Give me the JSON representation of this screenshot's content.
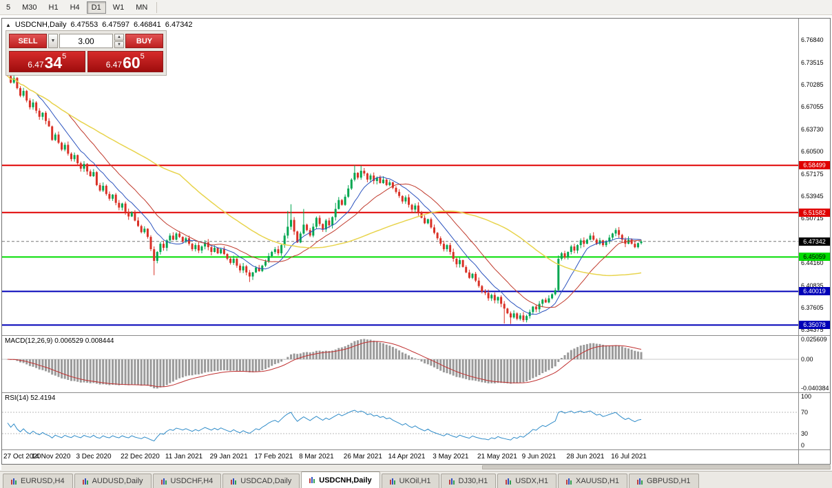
{
  "toolbar": {
    "timeframes": [
      {
        "label": "5",
        "active": false
      },
      {
        "label": "M30",
        "active": false
      },
      {
        "label": "H1",
        "active": false
      },
      {
        "label": "H4",
        "active": false
      },
      {
        "label": "D1",
        "active": true
      },
      {
        "label": "W1",
        "active": false
      },
      {
        "label": "MN",
        "active": false
      }
    ]
  },
  "chart_header": {
    "symbol_period": "USDCNH,Daily",
    "open": "6.47553",
    "high": "6.47597",
    "low": "6.46841",
    "close": "6.47342"
  },
  "one_click": {
    "sell_label": "SELL",
    "buy_label": "BUY",
    "volume": "3.00",
    "sell_big": "6.47",
    "sell_pips": "34",
    "sell_sub": "5",
    "buy_big": "6.47",
    "buy_pips": "60",
    "buy_sub": "5"
  },
  "macd_panel": {
    "label": "MACD(12,26,9)",
    "values": "0.006529 0.008444"
  },
  "rsi_panel": {
    "label": "RSI(14)",
    "value": "52.4194"
  },
  "colors": {
    "bull": "#00a650",
    "bear": "#d93025",
    "ma_fast": "#2a52be",
    "ma_mid": "#c0392b",
    "ma_slow": "#e8d44d",
    "level_red": "#e00000",
    "level_green": "#00dd00",
    "level_blue": "#0000b8",
    "current_badge": "#000000",
    "macd_hist": "#9a9a9a",
    "macd_signal": "#c03030",
    "rsi_line": "#2e8bc8"
  },
  "tabs": [
    {
      "label": "EURUSD,H4",
      "active": false
    },
    {
      "label": "AUDUSD,Daily",
      "active": false
    },
    {
      "label": "USDCHF,H4",
      "active": false
    },
    {
      "label": "USDCAD,Daily",
      "active": false
    },
    {
      "label": "USDCNH,Daily",
      "active": true
    },
    {
      "label": "UKOil,H1",
      "active": false
    },
    {
      "label": "DJ30,H1",
      "active": false
    },
    {
      "label": "USDX,H1",
      "active": false
    },
    {
      "label": "XAUUSD,H1",
      "active": false
    },
    {
      "label": "GBPUSD,H1",
      "active": false
    }
  ],
  "chart_data": {
    "type": "candlestick",
    "title": "USDCNH,Daily",
    "x_labels": [
      "27 Oct 2020",
      "14 Nov 2020",
      "3 Dec 2020",
      "22 Dec 2020",
      "11 Jan 2021",
      "29 Jan 2021",
      "17 Feb 2021",
      "8 Mar 2021",
      "26 Mar 2021",
      "14 Apr 2021",
      "3 May 2021",
      "21 May 2021",
      "9 Jun 2021",
      "28 Jun 2021",
      "16 Jul 2021"
    ],
    "x_label_every": 14,
    "y_range": [
      6.336,
      6.8
    ],
    "y_ticks": [
      6.7684,
      6.73515,
      6.70285,
      6.67055,
      6.6373,
      6.605,
      6.57175,
      6.53945,
      6.50715,
      6.4416,
      6.40835,
      6.37605,
      6.34375
    ],
    "levels": [
      {
        "value": 6.58499,
        "label": "6.58499",
        "color": "#e00000",
        "text": "#ffffff"
      },
      {
        "value": 6.51582,
        "label": "6.51582",
        "color": "#e00000",
        "text": "#ffffff"
      },
      {
        "value": 6.45059,
        "label": "6.45059",
        "color": "#00dd00",
        "text": "#000000"
      },
      {
        "value": 6.40019,
        "label": "6.40019",
        "color": "#0000b8",
        "text": "#ffffff"
      },
      {
        "value": 6.35078,
        "label": "6.35078",
        "color": "#0000b8",
        "text": "#ffffff"
      }
    ],
    "current_price": 6.47342,
    "current_price_label": "6.47342",
    "closes": [
      6.716,
      6.706,
      6.713,
      6.698,
      6.687,
      6.694,
      6.68,
      6.67,
      6.677,
      6.665,
      6.656,
      6.662,
      6.65,
      6.642,
      6.622,
      6.63,
      6.618,
      6.608,
      6.615,
      6.602,
      6.594,
      6.6,
      6.588,
      6.58,
      6.587,
      6.576,
      6.569,
      6.575,
      6.556,
      6.548,
      6.555,
      6.543,
      6.536,
      6.542,
      6.53,
      6.523,
      6.529,
      6.517,
      6.51,
      6.516,
      6.504,
      6.496,
      6.487,
      6.492,
      6.48,
      6.462,
      6.445,
      6.458,
      6.47,
      6.464,
      6.475,
      6.482,
      6.476,
      6.485,
      6.48,
      6.473,
      6.478,
      6.47,
      6.462,
      6.468,
      6.46,
      6.466,
      6.472,
      6.465,
      6.458,
      6.464,
      6.456,
      6.462,
      6.455,
      6.448,
      6.442,
      6.448,
      6.438,
      6.431,
      6.437,
      6.428,
      6.422,
      6.428,
      6.435,
      6.43,
      6.438,
      6.444,
      6.452,
      6.458,
      6.462,
      6.456,
      6.468,
      6.482,
      6.495,
      6.505,
      6.488,
      6.472,
      6.485,
      6.498,
      6.49,
      6.482,
      6.495,
      6.508,
      6.499,
      6.491,
      6.504,
      6.497,
      6.509,
      6.521,
      6.534,
      6.527,
      6.539,
      6.551,
      6.564,
      6.574,
      6.567,
      6.577,
      6.573,
      6.564,
      6.57,
      6.562,
      6.567,
      6.559,
      6.564,
      6.556,
      6.56,
      6.552,
      6.546,
      6.54,
      6.532,
      6.538,
      6.527,
      6.52,
      6.526,
      6.516,
      6.508,
      6.5,
      6.506,
      6.494,
      6.486,
      6.478,
      6.47,
      6.462,
      6.468,
      6.458,
      6.448,
      6.44,
      6.446,
      6.436,
      6.428,
      6.42,
      6.426,
      6.416,
      6.408,
      6.4,
      6.398,
      6.39,
      6.395,
      6.387,
      6.392,
      6.382,
      6.375,
      6.368,
      6.362,
      6.368,
      6.36,
      6.365,
      6.358,
      6.364,
      6.37,
      6.378,
      6.374,
      6.382,
      6.388,
      6.384,
      6.39,
      6.396,
      6.402,
      6.448,
      6.456,
      6.45,
      6.458,
      6.466,
      6.46,
      6.468,
      6.475,
      6.47,
      6.476,
      6.482,
      6.476,
      6.47,
      6.475,
      6.468,
      6.473,
      6.479,
      6.485,
      6.49,
      6.483,
      6.476,
      6.47,
      6.476,
      6.47,
      6.465,
      6.471,
      6.4734
    ],
    "wick_overrides": {
      "0": {
        "h": 6.728
      },
      "46": {
        "l": 6.424
      },
      "76": {
        "l": 6.414
      },
      "88": {
        "h": 6.518
      },
      "89": {
        "h": 6.528
      },
      "93": {
        "h": 6.521
      },
      "103": {
        "h": 6.53
      },
      "109": {
        "h": 6.585
      },
      "111": {
        "h": 6.5845
      },
      "156": {
        "l": 6.353
      },
      "158": {
        "l": 6.3525
      }
    },
    "moving_averages": [
      {
        "name": "MA-fast",
        "period": 10,
        "color": "#2a52be",
        "width": 1
      },
      {
        "name": "MA-mid",
        "period": 20,
        "color": "#c0392b",
        "width": 1
      },
      {
        "name": "MA-slow",
        "period": 55,
        "color": "#e8d44d",
        "width": 1.5
      }
    ],
    "indicators": [
      {
        "type": "macd",
        "params": [
          12,
          26,
          9
        ],
        "last_main": 0.006529,
        "last_signal": 0.008444,
        "axis_labels": [
          "0.025609",
          "0.00",
          "-0.040384"
        ]
      },
      {
        "type": "rsi",
        "params": [
          14
        ],
        "last_value": 52.4194,
        "levels": [
          70,
          30
        ],
        "axis_labels": [
          "100",
          "70",
          "30",
          "0"
        ]
      }
    ],
    "legend_position": "none",
    "grid": false
  }
}
